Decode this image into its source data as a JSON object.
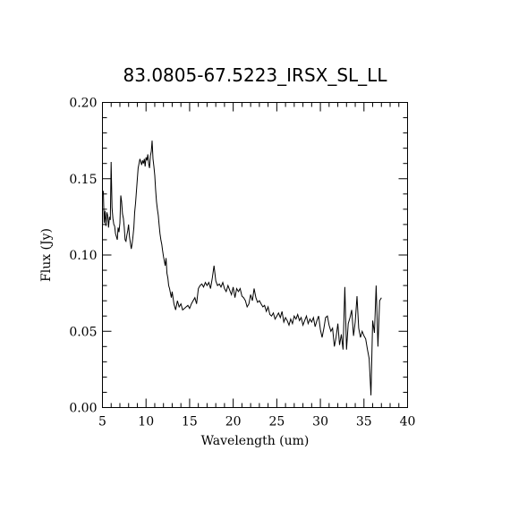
{
  "chart_data": {
    "type": "line",
    "title": "83.0805-67.5223_IRSX_SL_LL",
    "xlabel": "Wavelength (um)",
    "ylabel": "Flux (Jy)",
    "xlim": [
      5,
      40
    ],
    "ylim": [
      0.0,
      0.2
    ],
    "x_ticks": [
      "5",
      "10",
      "15",
      "20",
      "25",
      "30",
      "35",
      "40"
    ],
    "y_ticks": [
      "0.00",
      "0.05",
      "0.10",
      "0.15",
      "0.20"
    ],
    "x_minor_step": 1,
    "y_minor_step": 0.01,
    "grid": false,
    "series": [
      {
        "x": [
          5.1,
          5.2,
          5.3,
          5.4,
          5.5,
          5.6,
          5.7,
          5.8,
          5.9,
          6.0,
          6.1,
          6.2,
          6.3,
          6.4,
          6.5,
          6.6,
          6.7,
          6.8,
          6.9,
          7.0,
          7.1,
          7.2,
          7.3,
          7.4,
          7.5,
          7.6,
          7.7,
          7.8,
          7.9,
          8.0,
          8.1,
          8.2,
          8.3,
          8.4,
          8.5,
          8.6,
          8.7,
          8.8,
          8.9,
          9.0,
          9.1,
          9.2,
          9.3,
          9.4,
          9.5,
          9.6,
          9.7,
          9.8,
          9.9,
          10.0,
          10.1,
          10.2,
          10.3,
          10.4,
          10.5,
          10.6,
          10.7,
          10.8,
          10.9,
          11.0,
          11.1,
          11.2,
          11.3,
          11.4,
          11.5,
          11.6,
          11.7,
          11.8,
          11.9,
          12.0,
          12.1,
          12.2,
          12.3,
          12.4,
          12.5,
          12.6,
          12.7,
          12.8,
          12.9,
          13.0,
          13.2,
          13.4,
          13.6,
          13.8,
          14.0,
          14.2,
          14.4,
          14.6,
          14.8,
          15.0,
          15.2,
          15.4,
          15.6,
          15.8,
          16.0,
          16.2,
          16.4,
          16.6,
          16.8,
          17.0,
          17.2,
          17.4,
          17.6,
          17.8,
          18.0,
          18.2,
          18.4,
          18.6,
          18.8,
          19.0,
          19.2,
          19.4,
          19.6,
          19.8,
          20.0,
          20.2,
          20.4,
          20.6,
          20.8,
          21.0,
          21.2,
          21.4,
          21.6,
          21.8,
          22.0,
          22.2,
          22.4,
          22.6,
          22.8,
          23.0,
          23.2,
          23.4,
          23.6,
          23.8,
          24.0,
          24.2,
          24.4,
          24.6,
          24.8,
          25.0,
          25.2,
          25.4,
          25.6,
          25.8,
          26.0,
          26.2,
          26.4,
          26.6,
          26.8,
          27.0,
          27.2,
          27.4,
          27.6,
          27.8,
          28.0,
          28.2,
          28.4,
          28.6,
          28.8,
          29.0,
          29.2,
          29.4,
          29.6,
          29.8,
          30.0,
          30.2,
          30.4,
          30.6,
          30.8,
          31.0,
          31.2,
          31.4,
          31.6,
          31.8,
          32.0,
          32.2,
          32.4,
          32.6,
          32.8,
          33.0,
          33.2,
          33.4,
          33.6,
          33.8,
          34.0,
          34.2,
          34.4,
          34.6,
          34.8,
          35.0,
          35.2,
          35.4,
          35.6,
          35.8,
          36.0,
          36.2,
          36.4,
          36.6,
          36.8,
          37.0
        ],
        "y": [
          0.142,
          0.121,
          0.129,
          0.119,
          0.128,
          0.126,
          0.118,
          0.125,
          0.123,
          0.161,
          0.131,
          0.124,
          0.12,
          0.119,
          0.114,
          0.112,
          0.11,
          0.118,
          0.115,
          0.121,
          0.139,
          0.135,
          0.127,
          0.124,
          0.118,
          0.11,
          0.109,
          0.113,
          0.116,
          0.12,
          0.112,
          0.108,
          0.104,
          0.107,
          0.112,
          0.118,
          0.128,
          0.134,
          0.142,
          0.15,
          0.157,
          0.16,
          0.163,
          0.161,
          0.159,
          0.162,
          0.16,
          0.163,
          0.158,
          0.164,
          0.162,
          0.166,
          0.16,
          0.157,
          0.165,
          0.168,
          0.175,
          0.163,
          0.158,
          0.152,
          0.143,
          0.135,
          0.13,
          0.126,
          0.12,
          0.114,
          0.11,
          0.107,
          0.103,
          0.099,
          0.096,
          0.093,
          0.098,
          0.088,
          0.085,
          0.08,
          0.078,
          0.075,
          0.072,
          0.076,
          0.068,
          0.064,
          0.07,
          0.066,
          0.068,
          0.064,
          0.065,
          0.066,
          0.067,
          0.065,
          0.068,
          0.07,
          0.072,
          0.068,
          0.078,
          0.08,
          0.081,
          0.079,
          0.082,
          0.08,
          0.082,
          0.078,
          0.085,
          0.093,
          0.083,
          0.08,
          0.081,
          0.079,
          0.082,
          0.078,
          0.076,
          0.08,
          0.077,
          0.074,
          0.079,
          0.072,
          0.078,
          0.076,
          0.078,
          0.073,
          0.072,
          0.07,
          0.066,
          0.068,
          0.074,
          0.07,
          0.078,
          0.072,
          0.069,
          0.07,
          0.068,
          0.066,
          0.067,
          0.063,
          0.066,
          0.061,
          0.06,
          0.062,
          0.058,
          0.06,
          0.062,
          0.059,
          0.063,
          0.056,
          0.059,
          0.057,
          0.054,
          0.058,
          0.055,
          0.06,
          0.058,
          0.061,
          0.057,
          0.059,
          0.054,
          0.057,
          0.06,
          0.055,
          0.058,
          0.056,
          0.059,
          0.053,
          0.057,
          0.06,
          0.051,
          0.046,
          0.052,
          0.059,
          0.06,
          0.054,
          0.05,
          0.052,
          0.04,
          0.046,
          0.055,
          0.041,
          0.048,
          0.038,
          0.079,
          0.038,
          0.055,
          0.059,
          0.064,
          0.047,
          0.056,
          0.073,
          0.052,
          0.046,
          0.05,
          0.047,
          0.045,
          0.038,
          0.032,
          0.008,
          0.057,
          0.049,
          0.08,
          0.04,
          0.07,
          0.072
        ]
      }
    ]
  }
}
